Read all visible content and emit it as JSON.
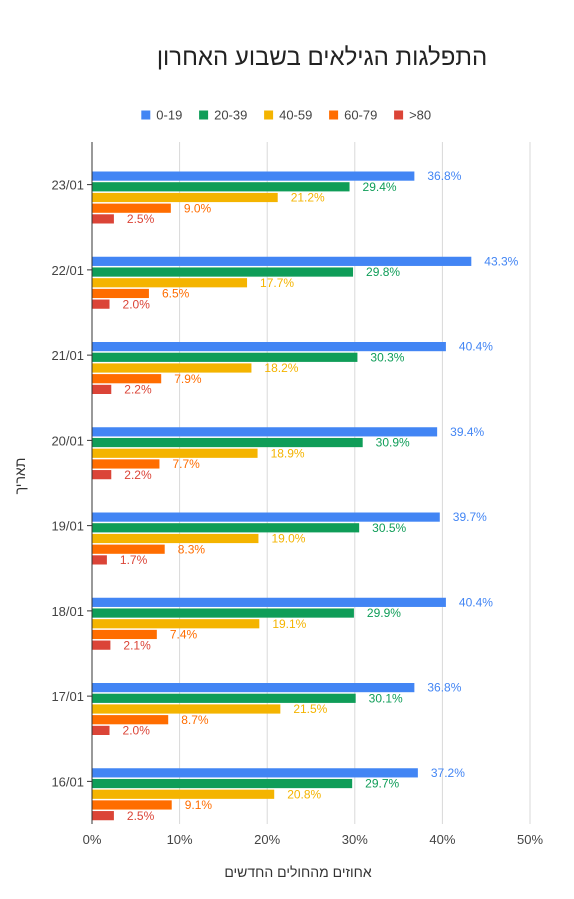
{
  "chart_data": {
    "type": "bar",
    "orientation": "horizontal",
    "title": "התפלגות הגילאים בשבוע האחרון",
    "xlabel": "אחוזים מהחולים החדשים",
    "ylabel": "תאריך",
    "xlim": [
      0,
      50
    ],
    "x_ticks": [
      "0%",
      "10%",
      "20%",
      "30%",
      "40%",
      "50%"
    ],
    "grid": true,
    "legend_position": "top",
    "categories": [
      "23/01",
      "22/01",
      "21/01",
      "20/01",
      "19/01",
      "18/01",
      "17/01",
      "16/01"
    ],
    "series": [
      {
        "name": "0-19",
        "color": "#4285f4",
        "values": [
          36.8,
          43.3,
          40.4,
          39.4,
          39.7,
          40.4,
          36.8,
          37.2
        ],
        "labels": [
          "36.8%",
          "43.3%",
          "40.4%",
          "39.4%",
          "39.7%",
          "40.4%",
          "36.8%",
          "37.2%"
        ]
      },
      {
        "name": "20-39",
        "color": "#0f9d58",
        "values": [
          29.4,
          29.8,
          30.3,
          30.9,
          30.5,
          29.9,
          30.1,
          29.7
        ],
        "labels": [
          "29.4%",
          "29.8%",
          "30.3%",
          "30.9%",
          "30.5%",
          "29.9%",
          "30.1%",
          "29.7%"
        ]
      },
      {
        "name": "40-59",
        "color": "#f4b400",
        "values": [
          21.2,
          17.7,
          18.2,
          18.9,
          19.0,
          19.1,
          21.5,
          20.8
        ],
        "labels": [
          "21.2%",
          "17.7%",
          "18.2%",
          "18.9%",
          "19.0%",
          "19.1%",
          "21.5%",
          "20.8%"
        ]
      },
      {
        "name": "60-79",
        "color": "#ff6d00",
        "values": [
          9.0,
          6.5,
          7.9,
          7.7,
          8.3,
          7.4,
          8.7,
          9.1
        ],
        "labels": [
          "9.0%",
          "6.5%",
          "7.9%",
          "7.7%",
          "8.3%",
          "7.4%",
          "8.7%",
          "9.1%"
        ]
      },
      {
        "name": ">80",
        "color": "#db4437",
        "values": [
          2.5,
          2.0,
          2.2,
          2.2,
          1.7,
          2.1,
          2.0,
          2.5
        ],
        "labels": [
          "2.5%",
          "2.0%",
          "2.2%",
          "2.2%",
          "1.7%",
          "2.1%",
          "2.0%",
          "2.5%"
        ]
      }
    ]
  }
}
